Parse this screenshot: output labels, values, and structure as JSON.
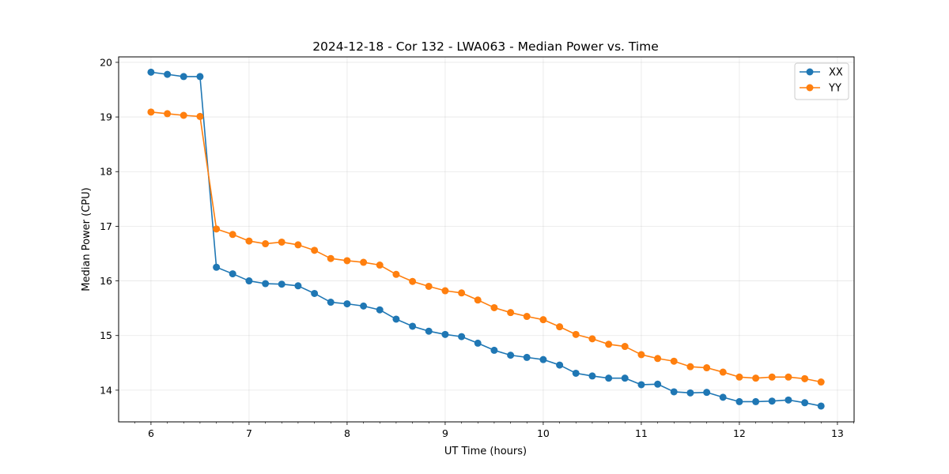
{
  "chart_data": {
    "type": "line",
    "title": "2024-12-18 - Cor 132 - LWA063 - Median Power vs. Time",
    "xlabel": "UT Time (hours)",
    "ylabel": "Median Power (CPU)",
    "xlim": [
      5.67,
      13.17
    ],
    "ylim": [
      13.42,
      20.1
    ],
    "xticks": [
      6,
      7,
      8,
      9,
      10,
      11,
      12,
      13
    ],
    "yticks": [
      14,
      15,
      16,
      17,
      18,
      19,
      20
    ],
    "grid": true,
    "legend_position": "top-right",
    "x": [
      6.0,
      6.167,
      6.333,
      6.5,
      6.667,
      6.833,
      7.0,
      7.167,
      7.333,
      7.5,
      7.667,
      7.833,
      8.0,
      8.167,
      8.333,
      8.5,
      8.667,
      8.833,
      9.0,
      9.167,
      9.333,
      9.5,
      9.667,
      9.833,
      10.0,
      10.167,
      10.333,
      10.5,
      10.667,
      10.833,
      11.0,
      11.167,
      11.333,
      11.5,
      11.667,
      11.833,
      12.0,
      12.167,
      12.333,
      12.5,
      12.667,
      12.833
    ],
    "series": [
      {
        "name": "XX",
        "color": "#1f77b4",
        "values": [
          19.82,
          19.78,
          19.74,
          19.74,
          16.25,
          16.13,
          16.0,
          15.95,
          15.94,
          15.91,
          15.77,
          15.61,
          15.58,
          15.54,
          15.47,
          15.3,
          15.17,
          15.08,
          15.02,
          14.98,
          14.86,
          14.73,
          14.64,
          14.6,
          14.56,
          14.46,
          14.31,
          14.26,
          14.22,
          14.22,
          14.1,
          14.11,
          13.97,
          13.95,
          13.96,
          13.87,
          13.79,
          13.79,
          13.8,
          13.82,
          13.77,
          13.71
        ]
      },
      {
        "name": "YY",
        "color": "#ff7f0e",
        "values": [
          19.09,
          19.06,
          19.03,
          19.01,
          16.95,
          16.85,
          16.73,
          16.68,
          16.71,
          16.66,
          16.56,
          16.41,
          16.37,
          16.34,
          16.29,
          16.12,
          15.99,
          15.9,
          15.82,
          15.78,
          15.65,
          15.51,
          15.42,
          15.35,
          15.29,
          15.16,
          15.02,
          14.94,
          14.84,
          14.8,
          14.65,
          14.58,
          14.53,
          14.43,
          14.41,
          14.33,
          14.24,
          14.22,
          14.24,
          14.24,
          14.21,
          14.15
        ]
      }
    ]
  }
}
